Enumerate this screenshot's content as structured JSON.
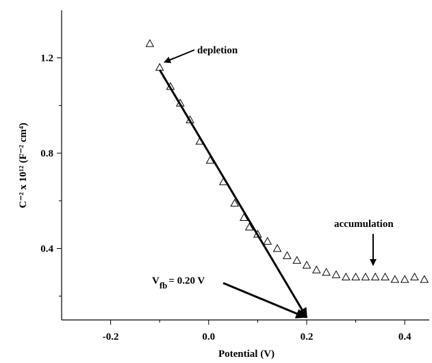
{
  "chart_data": {
    "type": "scatter",
    "x_label": "Potential (V)",
    "y_label": "C⁻² x 10¹² (F⁻² cm⁴)",
    "xlim": [
      -0.3,
      0.45
    ],
    "ylim": [
      0.1,
      1.4
    ],
    "xticks": [
      -0.2,
      {
        "value": 0,
        "label": "0.0"
      },
      0.2,
      0.4
    ],
    "yticks": [
      0.4,
      0.8,
      1.2
    ],
    "xminorticks": [
      -0.1,
      0.1,
      0.3
    ],
    "yminorticks": [
      0.2,
      0.6,
      1.0
    ],
    "marker": "open-triangle",
    "color": "#000000",
    "x": [
      -0.12,
      -0.1,
      -0.078,
      -0.058,
      -0.038,
      -0.018,
      0.003,
      0.03,
      0.053,
      0.072,
      0.083,
      0.1,
      0.12,
      0.14,
      0.16,
      0.18,
      0.2,
      0.22,
      0.24,
      0.26,
      0.28,
      0.3,
      0.32,
      0.34,
      0.36,
      0.38,
      0.4,
      0.42,
      0.44
    ],
    "values": [
      1.26,
      1.16,
      1.08,
      1.01,
      0.94,
      0.85,
      0.77,
      0.68,
      0.59,
      0.53,
      0.49,
      0.46,
      0.43,
      0.4,
      0.37,
      0.35,
      0.33,
      0.31,
      0.3,
      0.29,
      0.28,
      0.28,
      0.28,
      0.28,
      0.28,
      0.27,
      0.27,
      0.28,
      0.27
    ],
    "fit_line": {
      "x": [
        -0.1,
        0.2
      ],
      "y": [
        1.15,
        0.11
      ]
    },
    "annotations": {
      "depletion": "depletion",
      "accumulation": "accumulation",
      "vfb": {
        "main": "V",
        "sub": "fb",
        "rest": "= 0.20 V"
      }
    }
  }
}
